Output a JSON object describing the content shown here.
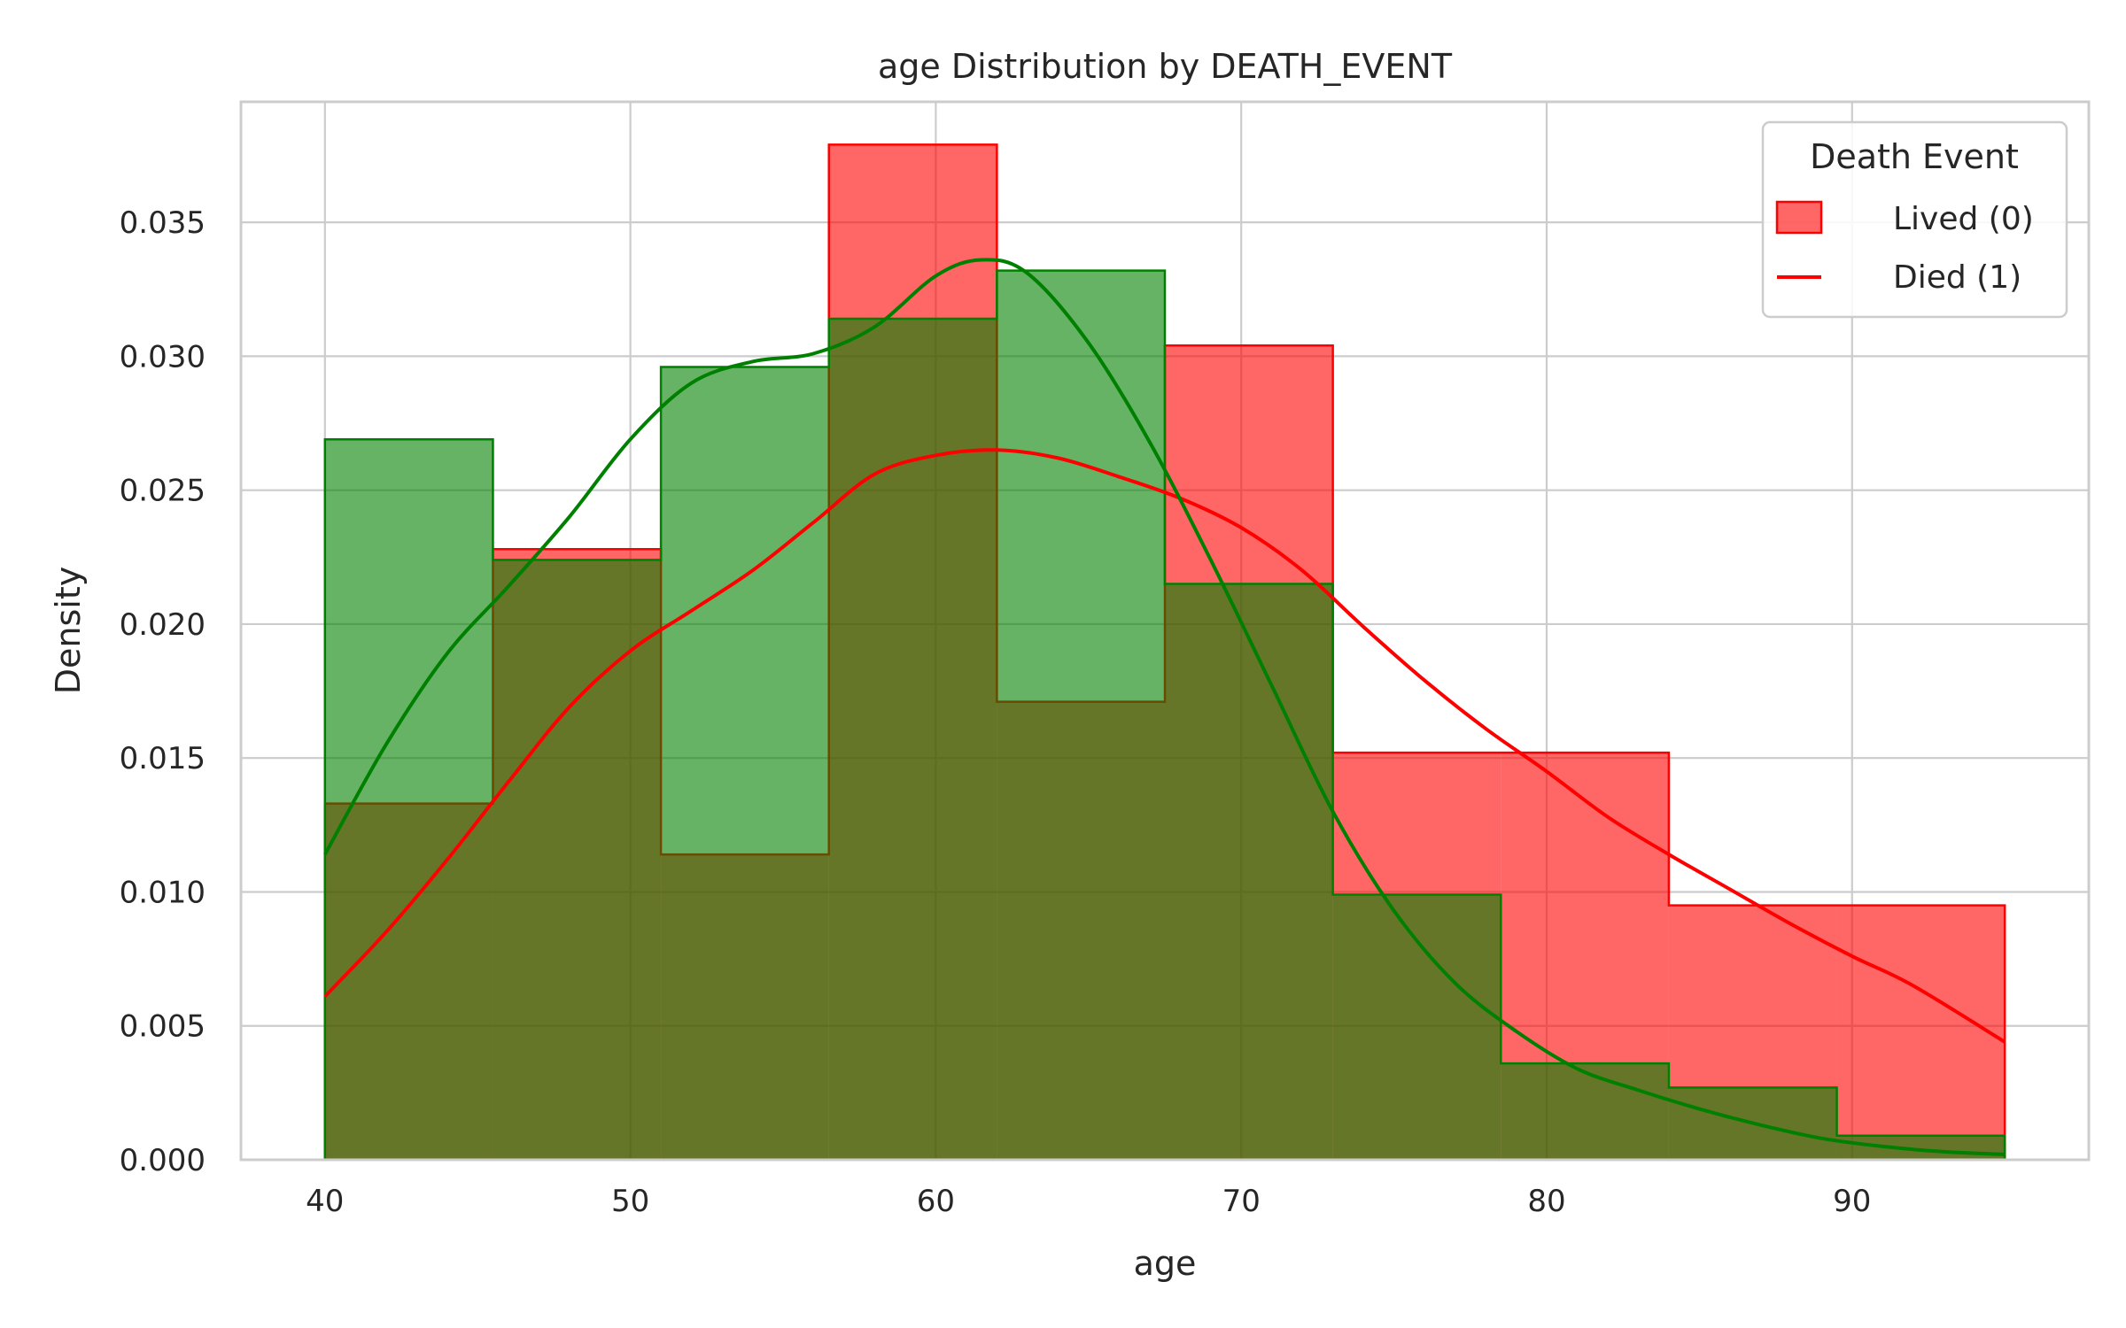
{
  "chart_data": {
    "type": "histogram",
    "title": "age Distribution by DEATH_EVENT",
    "xlabel": "age",
    "ylabel": "Density",
    "xlim": [
      37.25,
      97.75
    ],
    "ylim": [
      0,
      0.0395
    ],
    "x_ticks": [
      40,
      50,
      60,
      70,
      80,
      90
    ],
    "x_tick_labels": [
      "40",
      "50",
      "60",
      "70",
      "80",
      "90"
    ],
    "y_ticks": [
      0,
      0.005,
      0.01,
      0.015,
      0.02,
      0.025,
      0.03,
      0.035
    ],
    "y_tick_labels": [
      "0.000",
      "0.005",
      "0.010",
      "0.015",
      "0.020",
      "0.025",
      "0.030",
      "0.035"
    ],
    "grid": true,
    "legend": {
      "title": "Death Event",
      "placement": "top-right",
      "entries": [
        {
          "label": "Lived (0)",
          "kind": "patch"
        },
        {
          "label": "Died (1)",
          "kind": "line"
        }
      ]
    },
    "bin_edges": [
      40,
      45.5,
      51,
      56.5,
      62,
      67.5,
      73,
      78.5,
      84,
      89.5,
      95
    ],
    "series": [
      {
        "key": "red",
        "color": "#ff0000",
        "fill": "rgba(255,0,0,0.6)",
        "densities": [
          0.0133,
          0.0228,
          0.0114,
          0.0379,
          0.0171,
          0.0304,
          0.0152,
          0.0152,
          0.0095,
          0.0095
        ],
        "kde_x": [
          40,
          42,
          44,
          46,
          48,
          50,
          52,
          54,
          56,
          58,
          60,
          62,
          64,
          66,
          68,
          70,
          72,
          74,
          76,
          78,
          80,
          82,
          84,
          86,
          88,
          90,
          92,
          95
        ],
        "kde_y": [
          0.0061,
          0.0085,
          0.0112,
          0.0141,
          0.0169,
          0.019,
          0.0205,
          0.022,
          0.0238,
          0.0256,
          0.0263,
          0.0265,
          0.0262,
          0.0255,
          0.0247,
          0.0236,
          0.022,
          0.0199,
          0.0179,
          0.0161,
          0.0145,
          0.0128,
          0.0114,
          0.0101,
          0.0088,
          0.0076,
          0.0065,
          0.0044
        ]
      },
      {
        "key": "green",
        "color": "#008000",
        "fill": "rgba(0,128,0,0.6)",
        "densities": [
          0.0269,
          0.0224,
          0.0296,
          0.0314,
          0.0332,
          0.0215,
          0.0099,
          0.0036,
          0.0027,
          0.0009
        ],
        "kde_x": [
          40,
          42,
          44,
          46,
          48,
          50,
          52,
          54,
          56,
          58,
          60,
          61.5,
          63,
          65,
          67,
          69,
          71,
          73,
          75,
          77,
          79,
          81,
          83,
          85,
          87,
          89,
          91,
          93,
          95
        ],
        "kde_y": [
          0.0114,
          0.0155,
          0.0189,
          0.0214,
          0.024,
          0.0269,
          0.029,
          0.0298,
          0.0301,
          0.0311,
          0.033,
          0.0336,
          0.0331,
          0.0305,
          0.0268,
          0.0224,
          0.0177,
          0.013,
          0.0093,
          0.0066,
          0.0048,
          0.0034,
          0.0026,
          0.0019,
          0.0013,
          0.0008,
          0.0005,
          0.0003,
          0.0002
        ]
      }
    ]
  }
}
